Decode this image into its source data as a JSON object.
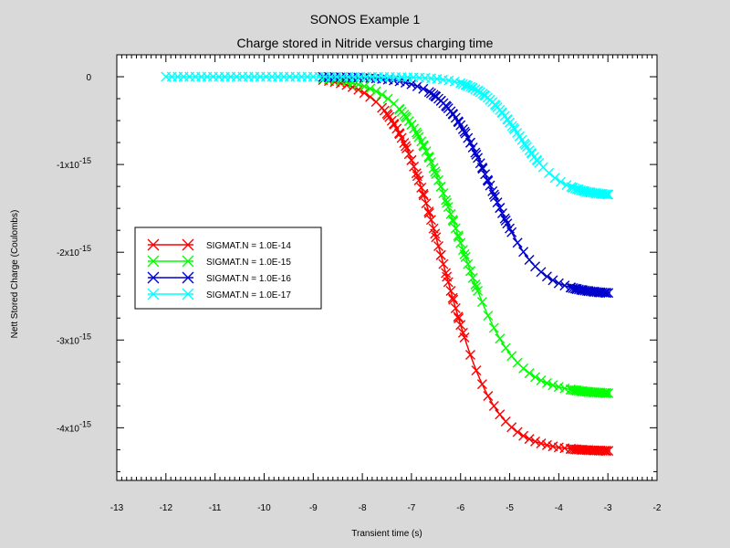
{
  "chart_data": {
    "type": "line",
    "title": "SONOS Example 1",
    "subtitle": "Charge stored in Nitride versus charging time",
    "xlabel": "Transient time (s)",
    "ylabel": "Nett Stored Charge (Coulombs)",
    "xlim": [
      -13,
      -2
    ],
    "ylim": [
      -4.6e-15,
      2.5e-16
    ],
    "x_ticks": [
      "-13",
      "-12",
      "-11",
      "-10",
      "-9",
      "-8",
      "-7",
      "-6",
      "-5",
      "-4",
      "-3",
      "-2"
    ],
    "y_ticks": [
      {
        "value": 0,
        "mantissa": "0",
        "exp": ""
      },
      {
        "value": -1e-15,
        "mantissa": "-1x10",
        "exp": "-15"
      },
      {
        "value": -2e-15,
        "mantissa": "-2x10",
        "exp": "-15"
      },
      {
        "value": -3e-15,
        "mantissa": "-3x10",
        "exp": "-15"
      },
      {
        "value": -4e-15,
        "mantissa": "-4x10",
        "exp": "-15"
      }
    ],
    "grid": false,
    "legend_position": "left",
    "series": [
      {
        "name": "SIGMAT.N = 1.0E-14",
        "color": "#ff0000",
        "x0": -8.8,
        "xmax": -2.95,
        "center": -6.35,
        "width": 0.52,
        "final": -4.27e-15
      },
      {
        "name": "SIGMAT.N = 1.0E-15",
        "color": "#00ff00",
        "x0": -8.8,
        "xmax": -2.95,
        "center": -6.05,
        "width": 0.55,
        "final": -3.62e-15
      },
      {
        "name": "SIGMAT.N = 1.0E-16",
        "color": "#0000cc",
        "x0": -8.8,
        "xmax": -2.95,
        "center": -5.4,
        "width": 0.48,
        "final": -2.48e-15
      },
      {
        "name": "SIGMAT.N = 1.0E-17",
        "color": "#00ffff",
        "x0": -12.0,
        "xmax": -2.95,
        "center": -4.8,
        "width": 0.42,
        "final": -1.36e-15
      }
    ]
  }
}
